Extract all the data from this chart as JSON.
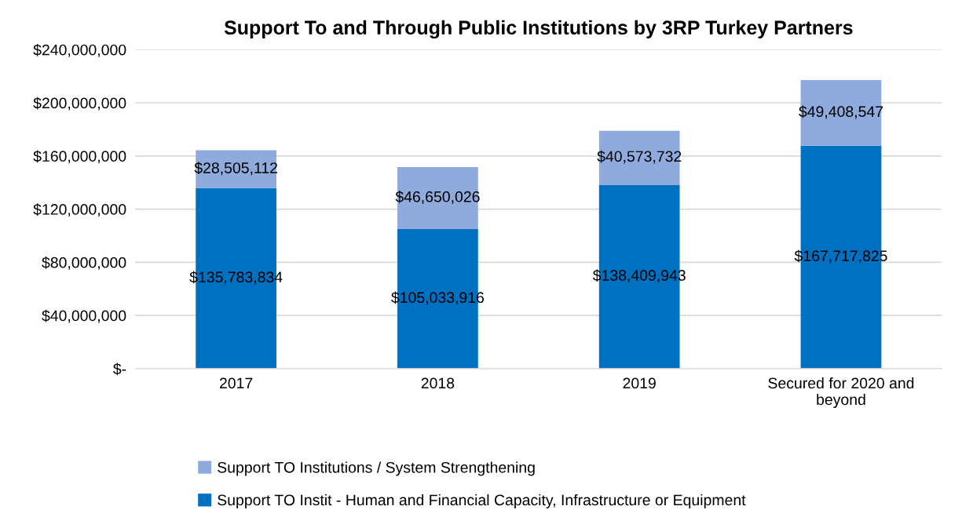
{
  "chart_data": {
    "type": "bar",
    "title": "Support To and Through Public Institutions by 3RP Turkey Partners",
    "categories": [
      "2017",
      "2018",
      "2019",
      "Secured for 2020 and\nbeyond"
    ],
    "stacked": true,
    "series": [
      {
        "name": "Support TO Instit - Human and Financial Capacity, Infrastructure or Equipment",
        "color": "#0070c0",
        "values": [
          135783834,
          105033916,
          138409943,
          167717825
        ],
        "value_labels": [
          "$135,783,834",
          "$105,033,916",
          "$138,409,943",
          "$167,717,825"
        ]
      },
      {
        "name": "Support TO Institutions / System Strengthening",
        "color": "#8faadc",
        "values": [
          28505112,
          46650026,
          40573732,
          49408547
        ],
        "value_labels": [
          "$28,505,112",
          "$46,650,026",
          "$40,573,732",
          "$49,408,547"
        ]
      }
    ],
    "ylim": [
      0,
      240000000
    ],
    "yticks": [
      {
        "value": 0,
        "label": "$-"
      },
      {
        "value": 40000000,
        "label": "$40,000,000"
      },
      {
        "value": 80000000,
        "label": "$80,000,000"
      },
      {
        "value": 120000000,
        "label": "$120,000,000"
      },
      {
        "value": 160000000,
        "label": "$160,000,000"
      },
      {
        "value": 200000000,
        "label": "$200,000,000"
      },
      {
        "value": 240000000,
        "label": "$240,000,000"
      }
    ],
    "grid": "y",
    "legend": "bottom"
  }
}
